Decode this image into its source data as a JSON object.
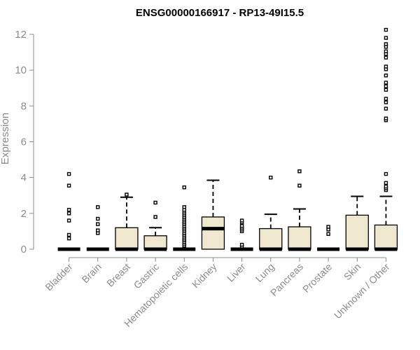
{
  "chart_data": {
    "type": "box",
    "title": "ENSG00000166917 - RP13-49I15.5",
    "xlabel": "",
    "ylabel": "Expression",
    "ylim": [
      0,
      12.4
    ],
    "yticks": [
      0,
      2,
      4,
      6,
      8,
      10,
      12
    ],
    "grid": false,
    "categories": [
      "Bladder",
      "Brain",
      "Breast",
      "Gastric",
      "Hematopoietic cells",
      "Kidney",
      "Liver",
      "Lung",
      "Pancreas",
      "Prostate",
      "Skin",
      "Unknown / Other"
    ],
    "boxes": [
      {
        "category": "Bladder",
        "q1": 0,
        "median": 0,
        "q3": 0,
        "whisker_low": 0,
        "whisker_high": 0,
        "outliers": [
          0.6,
          0.8,
          1.6,
          2.0,
          2.2,
          3.55,
          4.2
        ]
      },
      {
        "category": "Brain",
        "q1": 0,
        "median": 0,
        "q3": 0,
        "whisker_low": 0,
        "whisker_high": 0,
        "outliers": [
          0.9,
          1.05,
          1.4,
          1.7,
          2.35
        ]
      },
      {
        "category": "Breast",
        "q1": 0,
        "median": 0,
        "q3": 1.2,
        "whisker_low": 0,
        "whisker_high": 2.9,
        "outliers": [
          3.05
        ]
      },
      {
        "category": "Gastric",
        "q1": 0,
        "median": 0,
        "q3": 0.75,
        "whisker_low": 0,
        "whisker_high": 1.2,
        "outliers": [
          1.8,
          2.6
        ]
      },
      {
        "category": "Hematopoietic cells",
        "q1": 0,
        "median": 0,
        "q3": 0,
        "whisker_low": 0,
        "whisker_high": 0,
        "outliers": [
          0.2,
          0.3,
          0.4,
          0.5,
          0.6,
          0.7,
          0.8,
          0.9,
          1.0,
          1.1,
          1.2,
          1.3,
          1.4,
          1.5,
          1.6,
          1.7,
          1.8,
          1.9,
          2.0,
          2.1,
          2.2,
          2.35,
          3.45
        ]
      },
      {
        "category": "Kidney",
        "q1": 0,
        "median": 1.15,
        "q3": 1.8,
        "whisker_low": 0,
        "whisker_high": 3.85,
        "outliers": []
      },
      {
        "category": "Liver",
        "q1": 0,
        "median": 0,
        "q3": 0,
        "whisker_low": 0,
        "whisker_high": 0,
        "outliers": [
          0.15,
          0.25,
          1.0,
          1.1,
          1.2,
          1.3,
          1.5,
          1.6
        ]
      },
      {
        "category": "Lung",
        "q1": 0,
        "median": 0,
        "q3": 1.15,
        "whisker_low": 0,
        "whisker_high": 1.95,
        "outliers": [
          4.0
        ]
      },
      {
        "category": "Pancreas",
        "q1": 0,
        "median": 0,
        "q3": 1.25,
        "whisker_low": 0,
        "whisker_high": 2.25,
        "outliers": [
          3.55,
          4.35
        ]
      },
      {
        "category": "Prostate",
        "q1": 0,
        "median": 0,
        "q3": 0,
        "whisker_low": 0,
        "whisker_high": 0,
        "outliers": [
          0.85,
          1.1,
          1.25
        ]
      },
      {
        "category": "Skin",
        "q1": 0,
        "median": 0,
        "q3": 1.9,
        "whisker_low": 0,
        "whisker_high": 2.95,
        "outliers": []
      },
      {
        "category": "Unknown / Other",
        "q1": 0,
        "median": 0,
        "q3": 1.35,
        "whisker_low": 0,
        "whisker_high": 2.95,
        "outliers": [
          3.3,
          3.4,
          3.5,
          3.7,
          4.2,
          7.2,
          7.3,
          7.85,
          8.2,
          8.4,
          8.9,
          9.1,
          9.3,
          9.7,
          10.05,
          10.2,
          10.7,
          10.9,
          11.05,
          11.3,
          11.45,
          11.8,
          12.25
        ]
      }
    ]
  }
}
